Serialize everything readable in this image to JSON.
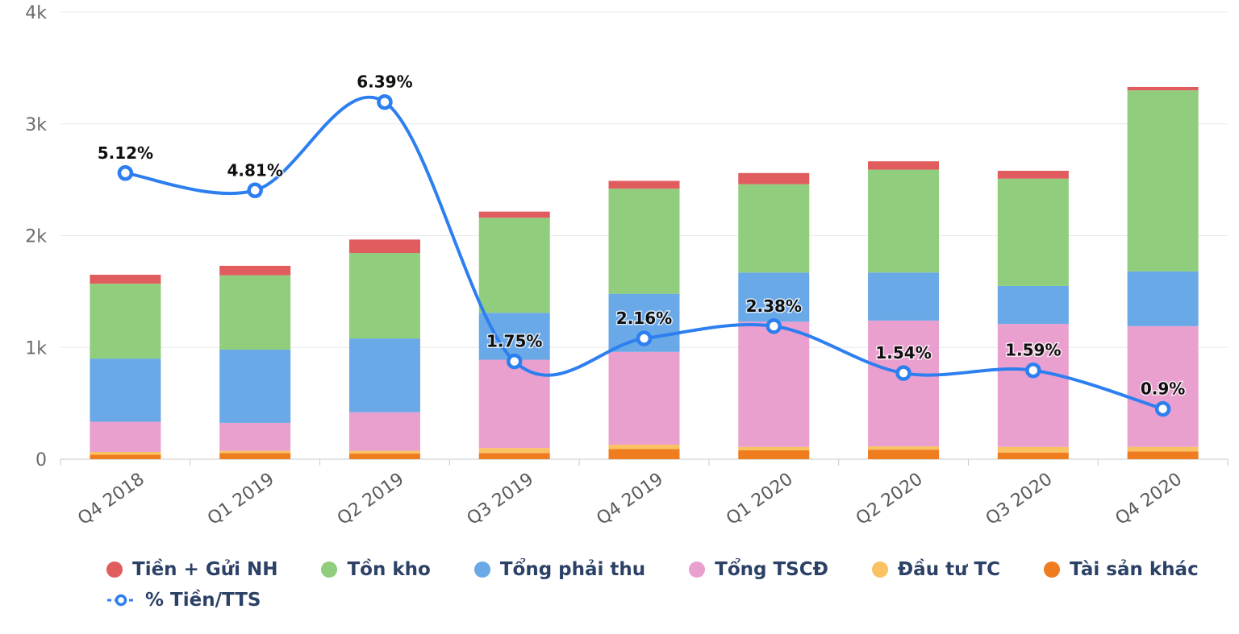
{
  "chart_data": {
    "type": "bar",
    "stacked": true,
    "title": "",
    "xlabel": "",
    "ylabel": "",
    "grid": true,
    "legend_position": "bottom",
    "categories": [
      "Q4 2018",
      "Q1 2019",
      "Q2 2019",
      "Q3 2019",
      "Q4 2019",
      "Q1 2020",
      "Q2 2020",
      "Q3 2020",
      "Q4 2020"
    ],
    "ylim": [
      0,
      4000
    ],
    "y_ticks": [
      {
        "label": "0",
        "value": 0
      },
      {
        "label": "1k",
        "value": 1000
      },
      {
        "label": "2k",
        "value": 2000
      },
      {
        "label": "3k",
        "value": 3000
      },
      {
        "label": "4k",
        "value": 4000
      }
    ],
    "series": [
      {
        "key": "tai-san-khac",
        "name": "Tài sản khác",
        "color": "#ef7d20",
        "values": [
          40,
          55,
          50,
          55,
          90,
          80,
          85,
          60,
          70
        ]
      },
      {
        "key": "dau-tu-tc",
        "name": "Đầu tư TC",
        "color": "#fbc264",
        "values": [
          25,
          20,
          25,
          45,
          40,
          30,
          30,
          50,
          40
        ]
      },
      {
        "key": "tong-tscd",
        "name": "Tổng TSCĐ",
        "color": "#eaa0ce",
        "values": [
          270,
          250,
          345,
          790,
          830,
          1120,
          1125,
          1100,
          1080
        ]
      },
      {
        "key": "tong-phai-thu",
        "name": "Tổng phải thu",
        "color": "#6aa9e7",
        "values": [
          565,
          655,
          660,
          420,
          520,
          440,
          430,
          340,
          490
        ]
      },
      {
        "key": "ton-kho",
        "name": "Tồn kho",
        "color": "#90cd7d",
        "values": [
          670,
          665,
          765,
          850,
          940,
          790,
          920,
          960,
          1620
        ]
      },
      {
        "key": "tien-gui-nh",
        "name": "Tiền + Gửi NH",
        "color": "#e05c5e",
        "values": [
          80,
          85,
          120,
          55,
          70,
          100,
          75,
          70,
          30
        ]
      }
    ],
    "line": {
      "key": "pct-tien-tts",
      "name": "% Tiền/TTS",
      "color": "#2d7ff0",
      "values_pct": [
        5.12,
        4.81,
        6.39,
        1.75,
        2.16,
        2.38,
        1.54,
        1.59,
        0.9
      ],
      "labels": [
        "5.12%",
        "4.81%",
        "6.39%",
        "1.75%",
        "2.16%",
        "2.38%",
        "1.54%",
        "1.59%",
        "0.9%"
      ],
      "pct_to_value_scale": 500
    }
  },
  "legend": {
    "items": [
      {
        "key": "tien-gui-nh",
        "label": "Tiền + Gửi NH",
        "color": "#e05c5e",
        "type": "dot"
      },
      {
        "key": "ton-kho",
        "label": "Tồn kho",
        "color": "#90cd7d",
        "type": "dot"
      },
      {
        "key": "tong-phai-thu",
        "label": "Tổng phải thu",
        "color": "#6aa9e7",
        "type": "dot"
      },
      {
        "key": "tong-tscd",
        "label": "Tổng TSCĐ",
        "color": "#eaa0ce",
        "type": "dot"
      },
      {
        "key": "dau-tu-tc",
        "label": "Đầu tư TC",
        "color": "#fbc264",
        "type": "dot"
      },
      {
        "key": "tai-san-khac",
        "label": "Tài sản khác",
        "color": "#ef7d20",
        "type": "dot"
      },
      {
        "key": "pct-tien-tts",
        "label": "% Tiền/TTS",
        "color": "#2d7ff0",
        "type": "line-marker"
      }
    ]
  },
  "colors": {
    "grid": "#e8e8e8",
    "axis": "#c9c9c9",
    "background": "#ffffff"
  }
}
